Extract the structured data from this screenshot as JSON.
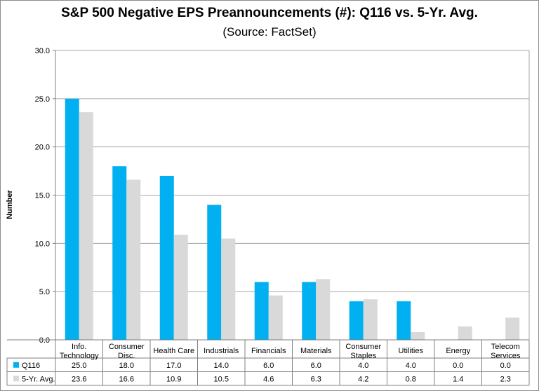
{
  "chart_data": {
    "type": "bar",
    "title": "S&P 500 Negative EPS Preannouncements (#): Q116 vs. 5-Yr. Avg.",
    "subtitle": "(Source: FactSet)",
    "ylabel": "Number",
    "xlabel": "",
    "ylim": [
      0,
      30
    ],
    "yticks": [
      "0.0",
      "5.0",
      "10.0",
      "15.0",
      "20.0",
      "25.0",
      "30.0"
    ],
    "grid": true,
    "legend": "data-table",
    "categories": [
      [
        "Info.",
        "Technology"
      ],
      [
        "Consumer",
        "Disc."
      ],
      [
        "Health Care"
      ],
      [
        "Industrials"
      ],
      [
        "Financials"
      ],
      [
        "Materials"
      ],
      [
        "Consumer",
        "Staples"
      ],
      [
        "Utilities"
      ],
      [
        "Energy"
      ],
      [
        "Telecom",
        "Services"
      ]
    ],
    "series": [
      {
        "name": "Q116",
        "color": "#00b0f0",
        "values": [
          25.0,
          18.0,
          17.0,
          14.0,
          6.0,
          6.0,
          4.0,
          4.0,
          0.0,
          0.0
        ],
        "labels": [
          "25.0",
          "18.0",
          "17.0",
          "14.0",
          "6.0",
          "6.0",
          "4.0",
          "4.0",
          "0.0",
          "0.0"
        ]
      },
      {
        "name": "5-Yr. Avg.",
        "color": "#d9d9d9",
        "values": [
          23.6,
          16.6,
          10.9,
          10.5,
          4.6,
          6.3,
          4.2,
          0.8,
          1.4,
          2.3
        ],
        "labels": [
          "23.6",
          "16.6",
          "10.9",
          "10.5",
          "4.6",
          "6.3",
          "4.2",
          "0.8",
          "1.4",
          "2.3"
        ]
      }
    ]
  }
}
